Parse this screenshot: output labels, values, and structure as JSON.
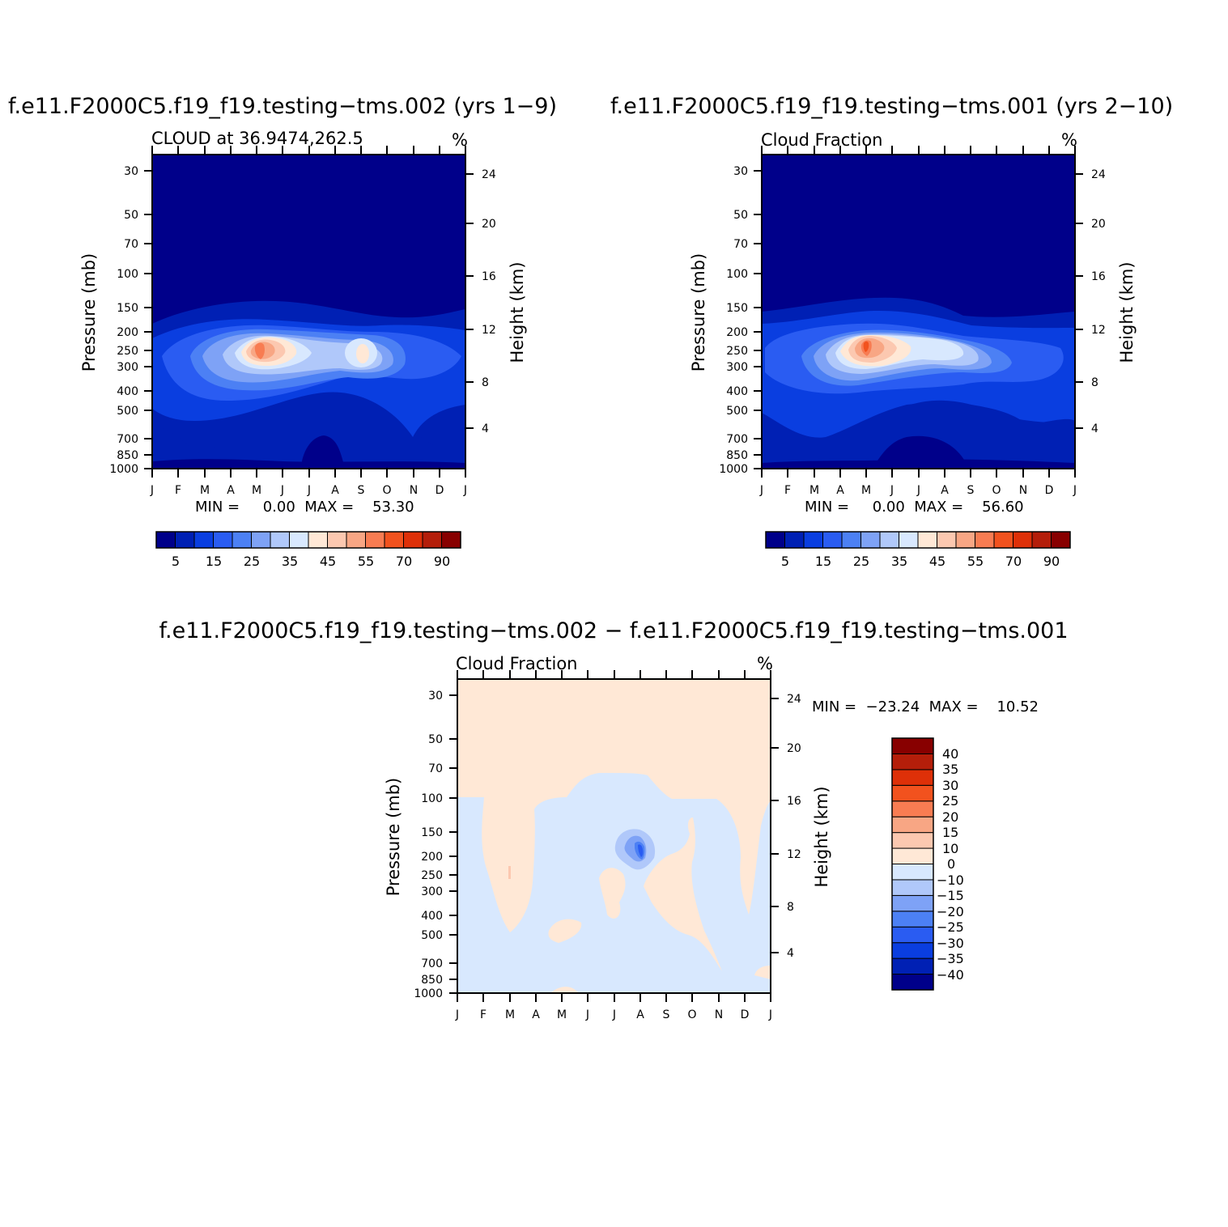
{
  "palette": [
    "#00008a",
    "#0020b4",
    "#0a3ee0",
    "#2a5cf2",
    "#4c80f4",
    "#7ea2f6",
    "#b0c8fa",
    "#d8e8fe",
    "#ffe8d6",
    "#fcc8b0",
    "#f8a684",
    "#f87c52",
    "#f2521e",
    "#de3008",
    "#b41e0a",
    "#880000"
  ],
  "chart_data": [
    {
      "type": "heatmap",
      "title": "f.e11.F2000C5.f19_f19.testing−tms.002 (yrs 1−9)",
      "subtitle": "CLOUD at 36.9474,262.5",
      "units": "%",
      "xlabel": "",
      "ylabel": "Pressure (mb)",
      "ylabel_right": "Height (km)",
      "x_ticks": [
        "J",
        "F",
        "M",
        "A",
        "M",
        "J",
        "J",
        "A",
        "S",
        "O",
        "N",
        "D",
        "J"
      ],
      "y_ticks": [
        "30",
        "50",
        "70",
        "100",
        "150",
        "200",
        "250",
        "300",
        "400",
        "500",
        "700",
        "850",
        "1000"
      ],
      "y_ticks_right": [
        "24",
        "20",
        "16",
        "12",
        "8",
        "4"
      ],
      "stats": "MIN =     0.00  MAX =    53.30",
      "colorbar": {
        "orientation": "horizontal",
        "labels": [
          "5",
          "15",
          "25",
          "35",
          "45",
          "55",
          "70",
          "90"
        ]
      },
      "peaks": [
        {
          "month": 4.0,
          "pressure": 250,
          "value": 53.3
        },
        {
          "month": 8.0,
          "pressure": 250,
          "value": 45
        }
      ]
    },
    {
      "type": "heatmap",
      "title": "f.e11.F2000C5.f19_f19.testing−tms.001 (yrs 2−10)",
      "subtitle": "Cloud Fraction",
      "units": "%",
      "xlabel": "",
      "ylabel": "Pressure (mb)",
      "ylabel_right": "Height (km)",
      "x_ticks": [
        "J",
        "F",
        "M",
        "A",
        "M",
        "J",
        "J",
        "A",
        "S",
        "O",
        "N",
        "D",
        "J"
      ],
      "y_ticks": [
        "30",
        "50",
        "70",
        "100",
        "150",
        "200",
        "250",
        "300",
        "400",
        "500",
        "700",
        "850",
        "1000"
      ],
      "y_ticks_right": [
        "24",
        "20",
        "16",
        "12",
        "8",
        "4"
      ],
      "stats": "MIN =     0.00  MAX =    56.60",
      "colorbar": {
        "orientation": "horizontal",
        "labels": [
          "5",
          "15",
          "25",
          "35",
          "45",
          "55",
          "70",
          "90"
        ]
      },
      "peaks": [
        {
          "month": 4.0,
          "pressure": 250,
          "value": 56.6
        },
        {
          "month": 7.0,
          "pressure": 230,
          "value": 40
        }
      ]
    },
    {
      "type": "heatmap",
      "title": "f.e11.F2000C5.f19_f19.testing−tms.002 − f.e11.F2000C5.f19_f19.testing−tms.001",
      "subtitle": "Cloud Fraction",
      "units": "%",
      "xlabel": "",
      "ylabel": "Pressure (mb)",
      "ylabel_right": "Height (km)",
      "x_ticks": [
        "J",
        "F",
        "M",
        "A",
        "M",
        "J",
        "J",
        "A",
        "S",
        "O",
        "N",
        "D",
        "J"
      ],
      "y_ticks": [
        "30",
        "50",
        "70",
        "100",
        "150",
        "200",
        "250",
        "300",
        "400",
        "500",
        "700",
        "850",
        "1000"
      ],
      "y_ticks_right": [
        "24",
        "20",
        "16",
        "12",
        "8",
        "4"
      ],
      "stats": "MIN =  −23.24  MAX =    10.52",
      "colorbar": {
        "orientation": "vertical",
        "labels": [
          "40",
          "35",
          "30",
          "25",
          "20",
          "15",
          "10",
          "0",
          "−10",
          "−15",
          "−20",
          "−25",
          "−30",
          "−35",
          "−40"
        ]
      },
      "anomaly": {
        "month": 7.0,
        "pressure": 185,
        "value": -23.24
      }
    }
  ]
}
